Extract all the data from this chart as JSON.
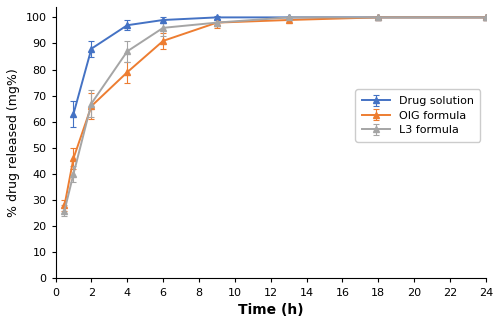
{
  "drug_solution": {
    "x": [
      1,
      2,
      4,
      6,
      9,
      13,
      18,
      24
    ],
    "y": [
      63,
      88,
      97,
      99,
      100,
      100,
      100,
      100
    ],
    "yerr": [
      5,
      3,
      2,
      1,
      0.5,
      0,
      0,
      0
    ],
    "color": "#4472C4",
    "label": "Drug solution",
    "marker": "^"
  },
  "OIG_formula": {
    "x": [
      0.5,
      1,
      2,
      4,
      6,
      9,
      13,
      18,
      24
    ],
    "y": [
      28,
      46,
      66,
      79,
      91,
      98,
      99,
      100,
      100
    ],
    "yerr": [
      2,
      4,
      5,
      4,
      3,
      2,
      0,
      0,
      0
    ],
    "color": "#ED7D31",
    "label": "OIG formula",
    "marker": "^"
  },
  "L3_formula": {
    "x": [
      0.5,
      1,
      2,
      4,
      6,
      9,
      13,
      18,
      24
    ],
    "y": [
      26,
      40,
      67,
      87,
      96,
      98,
      100,
      100,
      100
    ],
    "yerr": [
      2,
      3,
      5,
      4,
      3,
      1,
      0,
      0,
      0
    ],
    "color": "#A5A5A5",
    "label": "L3 formula",
    "marker": "^"
  },
  "xlabel": "Time (h)",
  "ylabel": "% drug released (mg%)",
  "xlim": [
    0,
    24
  ],
  "ylim": [
    0,
    104
  ],
  "xticks": [
    0,
    2,
    4,
    6,
    8,
    10,
    12,
    14,
    16,
    18,
    20,
    22,
    24
  ],
  "yticks": [
    0,
    10,
    20,
    30,
    40,
    50,
    60,
    70,
    80,
    90,
    100
  ],
  "background_color": "#ffffff",
  "linewidth": 1.4,
  "markersize": 4.5,
  "capsize": 2.5,
  "legend_fontsize": 8,
  "axis_fontsize": 9,
  "xlabel_fontsize": 10
}
